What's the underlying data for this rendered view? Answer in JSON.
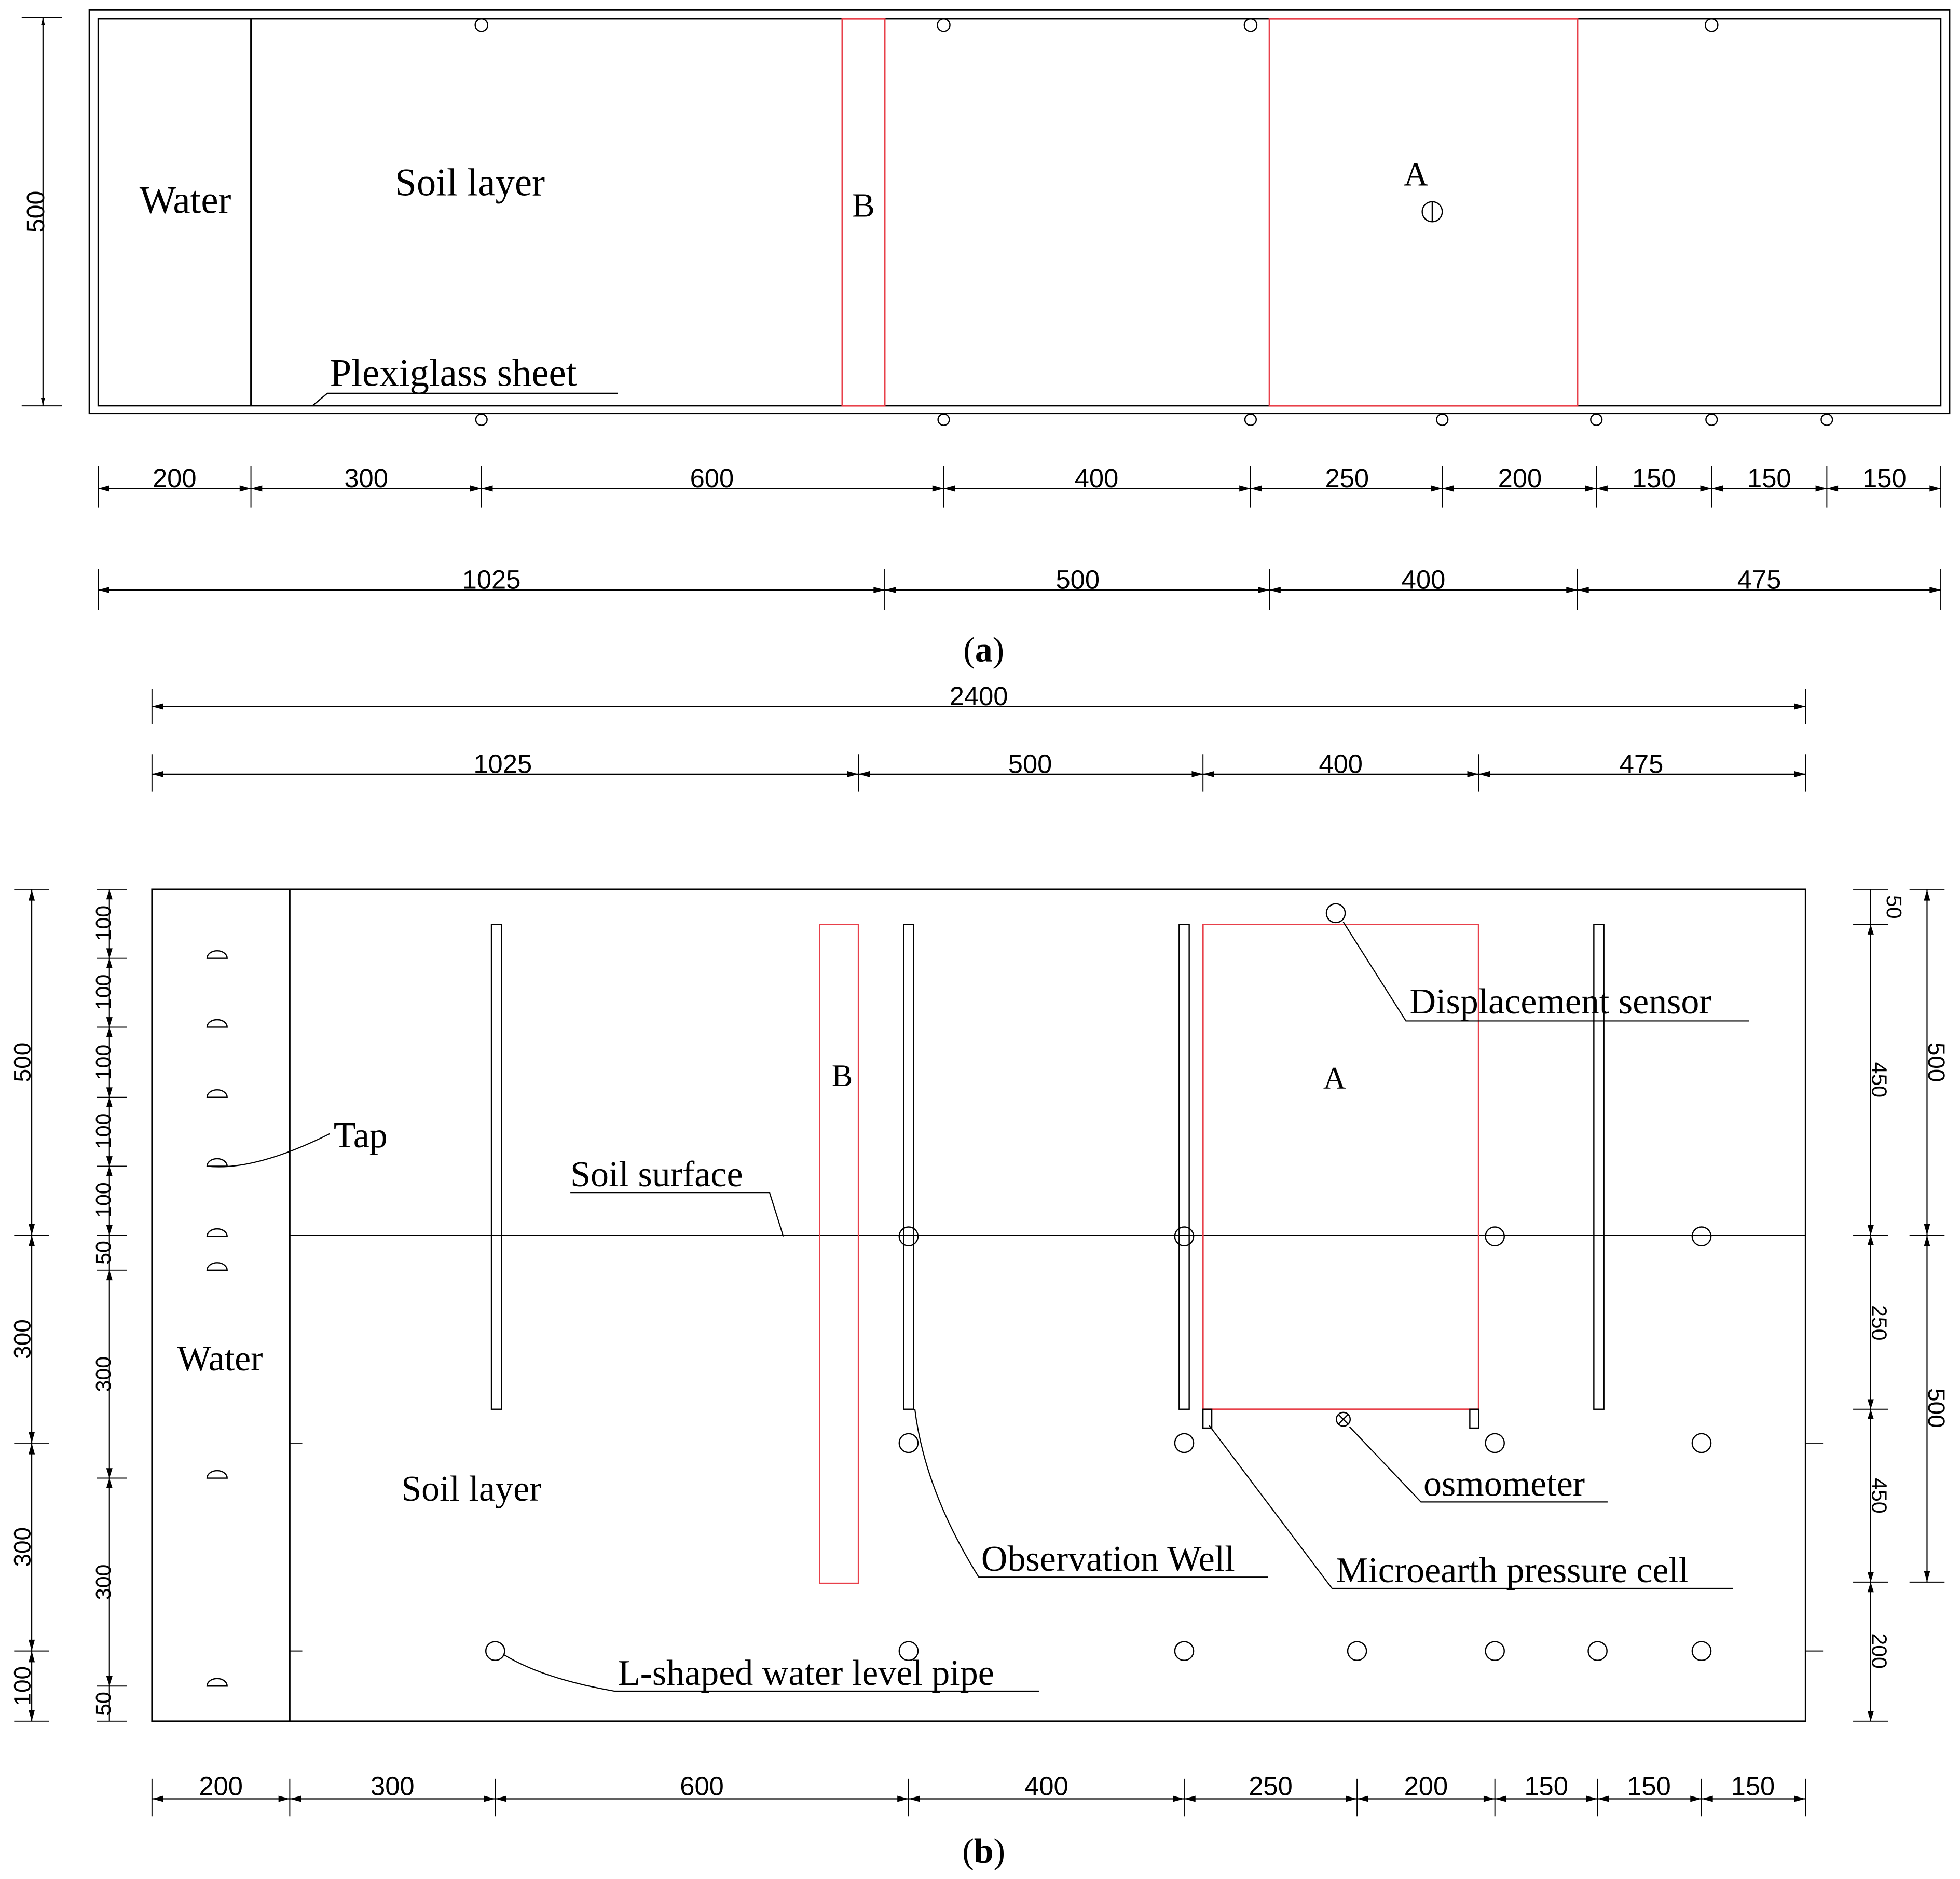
{
  "panel_a": {
    "caption_letter": "a",
    "labels": {
      "water": "Water",
      "soil_layer": "Soil layer",
      "zone_a": "A",
      "zone_b": "B",
      "plexiglass": "Plexiglass sheet"
    },
    "left_dim": "500",
    "dims_row1": [
      "200",
      "300",
      "600",
      "400",
      "250",
      "200",
      "150",
      "150",
      "150"
    ],
    "dims_row2": [
      "1025",
      "500",
      "400",
      "475"
    ]
  },
  "panel_b": {
    "caption_letter": "b",
    "top_total": "2400",
    "top_row": [
      "1025",
      "500",
      "400",
      "475"
    ],
    "labels": {
      "water": "Water",
      "soil_layer": "Soil layer",
      "zone_a": "A",
      "zone_b": "B",
      "tap": "Tap",
      "soil_surface": "Soil surface",
      "displacement_sensor": "Displacement sensor",
      "osmometer": "osmometer",
      "observation_well": "Observation Well",
      "pressure_cell": "Microearth pressure cell",
      "l_pipe": "L-shaped water level pipe"
    },
    "left_outer_dims": [
      "500",
      "300",
      "300",
      "100"
    ],
    "left_inner_dims": [
      "100",
      "100",
      "100",
      "100",
      "100",
      "50",
      "300",
      "300",
      "50"
    ],
    "right_inner_dims": [
      "50",
      "450",
      "250",
      "450",
      "200"
    ],
    "right_outer_dims": [
      "500",
      "500"
    ],
    "bottom_row": [
      "200",
      "300",
      "600",
      "400",
      "250",
      "200",
      "150",
      "150",
      "150"
    ]
  }
}
